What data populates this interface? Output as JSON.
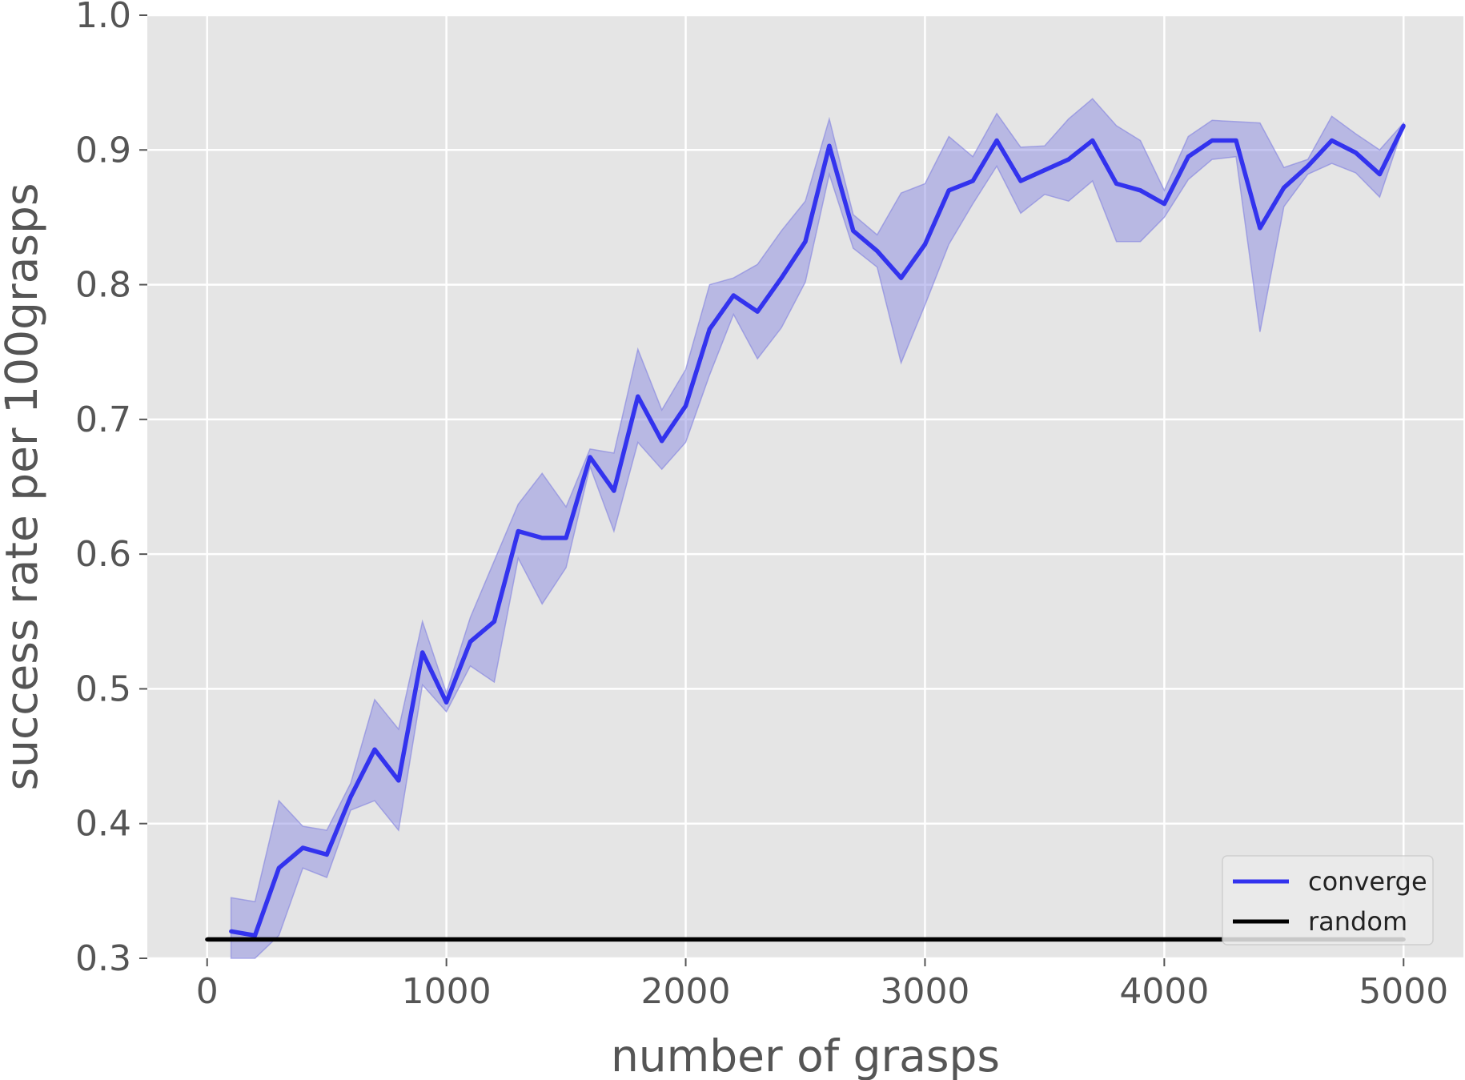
{
  "chart_data": {
    "type": "line",
    "xlabel": "number of grasps",
    "ylabel": "success rate per 100grasps",
    "xlim": [
      -250,
      5250
    ],
    "ylim": [
      0.3,
      1.0
    ],
    "xticks": [
      0,
      1000,
      2000,
      3000,
      4000,
      5000
    ],
    "xtick_labels": [
      "0",
      "1000",
      "2000",
      "3000",
      "4000",
      "5000"
    ],
    "yticks": [
      0.3,
      0.4,
      0.5,
      0.6,
      0.7,
      0.8,
      0.9,
      1.0
    ],
    "ytick_labels": [
      "0.3",
      "0.4",
      "0.5",
      "0.6",
      "0.7",
      "0.8",
      "0.9",
      "1.0"
    ],
    "grid": true,
    "legend_position": "bottom-right",
    "series": [
      {
        "name": "converge",
        "color": "#3333ee",
        "band_color": "#8080e0",
        "x": [
          100,
          200,
          300,
          400,
          500,
          600,
          700,
          800,
          900,
          1000,
          1100,
          1200,
          1300,
          1400,
          1500,
          1600,
          1700,
          1800,
          1900,
          2000,
          2100,
          2200,
          2300,
          2400,
          2500,
          2600,
          2700,
          2800,
          2900,
          3000,
          3100,
          3200,
          3300,
          3400,
          3500,
          3600,
          3700,
          3800,
          3900,
          4000,
          4100,
          4200,
          4300,
          4400,
          4500,
          4600,
          4700,
          4800,
          4900,
          5000
        ],
        "y": [
          0.32,
          0.317,
          0.367,
          0.382,
          0.377,
          0.42,
          0.455,
          0.432,
          0.527,
          0.49,
          0.535,
          0.55,
          0.617,
          0.612,
          0.612,
          0.672,
          0.647,
          0.717,
          0.684,
          0.71,
          0.767,
          0.792,
          0.78,
          0.805,
          0.832,
          0.903,
          0.84,
          0.825,
          0.805,
          0.83,
          0.87,
          0.877,
          0.907,
          0.877,
          0.885,
          0.893,
          0.907,
          0.875,
          0.87,
          0.86,
          0.895,
          0.907,
          0.907,
          0.842,
          0.872,
          0.888,
          0.907,
          0.898,
          0.882,
          0.918
        ],
        "lower": [
          0.295,
          0.285,
          0.317,
          0.367,
          0.36,
          0.41,
          0.417,
          0.395,
          0.503,
          0.483,
          0.517,
          0.505,
          0.597,
          0.563,
          0.59,
          0.665,
          0.617,
          0.683,
          0.663,
          0.683,
          0.733,
          0.778,
          0.745,
          0.768,
          0.802,
          0.882,
          0.827,
          0.813,
          0.742,
          0.785,
          0.83,
          0.86,
          0.888,
          0.853,
          0.867,
          0.862,
          0.877,
          0.832,
          0.832,
          0.85,
          0.878,
          0.893,
          0.895,
          0.765,
          0.858,
          0.882,
          0.89,
          0.883,
          0.865,
          0.918
        ],
        "upper": [
          0.345,
          0.342,
          0.417,
          0.398,
          0.395,
          0.43,
          0.492,
          0.47,
          0.55,
          0.497,
          0.553,
          0.595,
          0.637,
          0.66,
          0.635,
          0.678,
          0.675,
          0.752,
          0.707,
          0.737,
          0.8,
          0.805,
          0.815,
          0.84,
          0.862,
          0.923,
          0.852,
          0.837,
          0.868,
          0.875,
          0.91,
          0.895,
          0.927,
          0.902,
          0.903,
          0.923,
          0.938,
          0.918,
          0.907,
          0.87,
          0.91,
          0.922,
          0.921,
          0.92,
          0.887,
          0.893,
          0.925,
          0.912,
          0.9,
          0.92
        ]
      },
      {
        "name": "random",
        "color": "#000000",
        "x": [
          0,
          5000
        ],
        "y": [
          0.314,
          0.314
        ]
      }
    ]
  }
}
